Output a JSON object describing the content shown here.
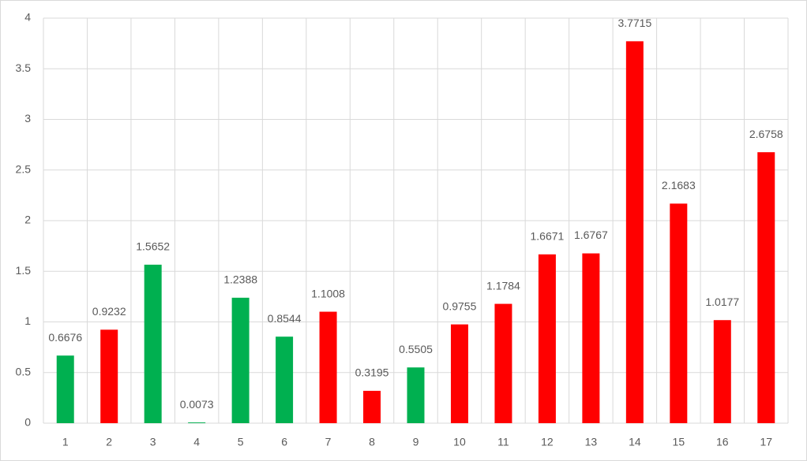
{
  "chart_data": {
    "type": "bar",
    "categories": [
      "1",
      "2",
      "3",
      "4",
      "5",
      "6",
      "7",
      "8",
      "9",
      "10",
      "11",
      "12",
      "13",
      "14",
      "15",
      "16",
      "17"
    ],
    "values": [
      0.6676,
      0.9232,
      1.5652,
      0.0073,
      1.2388,
      0.8544,
      1.1008,
      0.3195,
      0.5505,
      0.9755,
      1.1784,
      1.6671,
      1.6767,
      3.7715,
      2.1683,
      1.0177,
      2.6758
    ],
    "colors": [
      "#00b050",
      "#ff0000",
      "#00b050",
      "#00b050",
      "#00b050",
      "#00b050",
      "#ff0000",
      "#ff0000",
      "#00b050",
      "#ff0000",
      "#ff0000",
      "#ff0000",
      "#ff0000",
      "#ff0000",
      "#ff0000",
      "#ff0000",
      "#ff0000"
    ],
    "ylim": [
      0,
      4
    ],
    "yticks": [
      0,
      0.5,
      1,
      1.5,
      2,
      2.5,
      3,
      3.5,
      4
    ],
    "grid": true
  }
}
